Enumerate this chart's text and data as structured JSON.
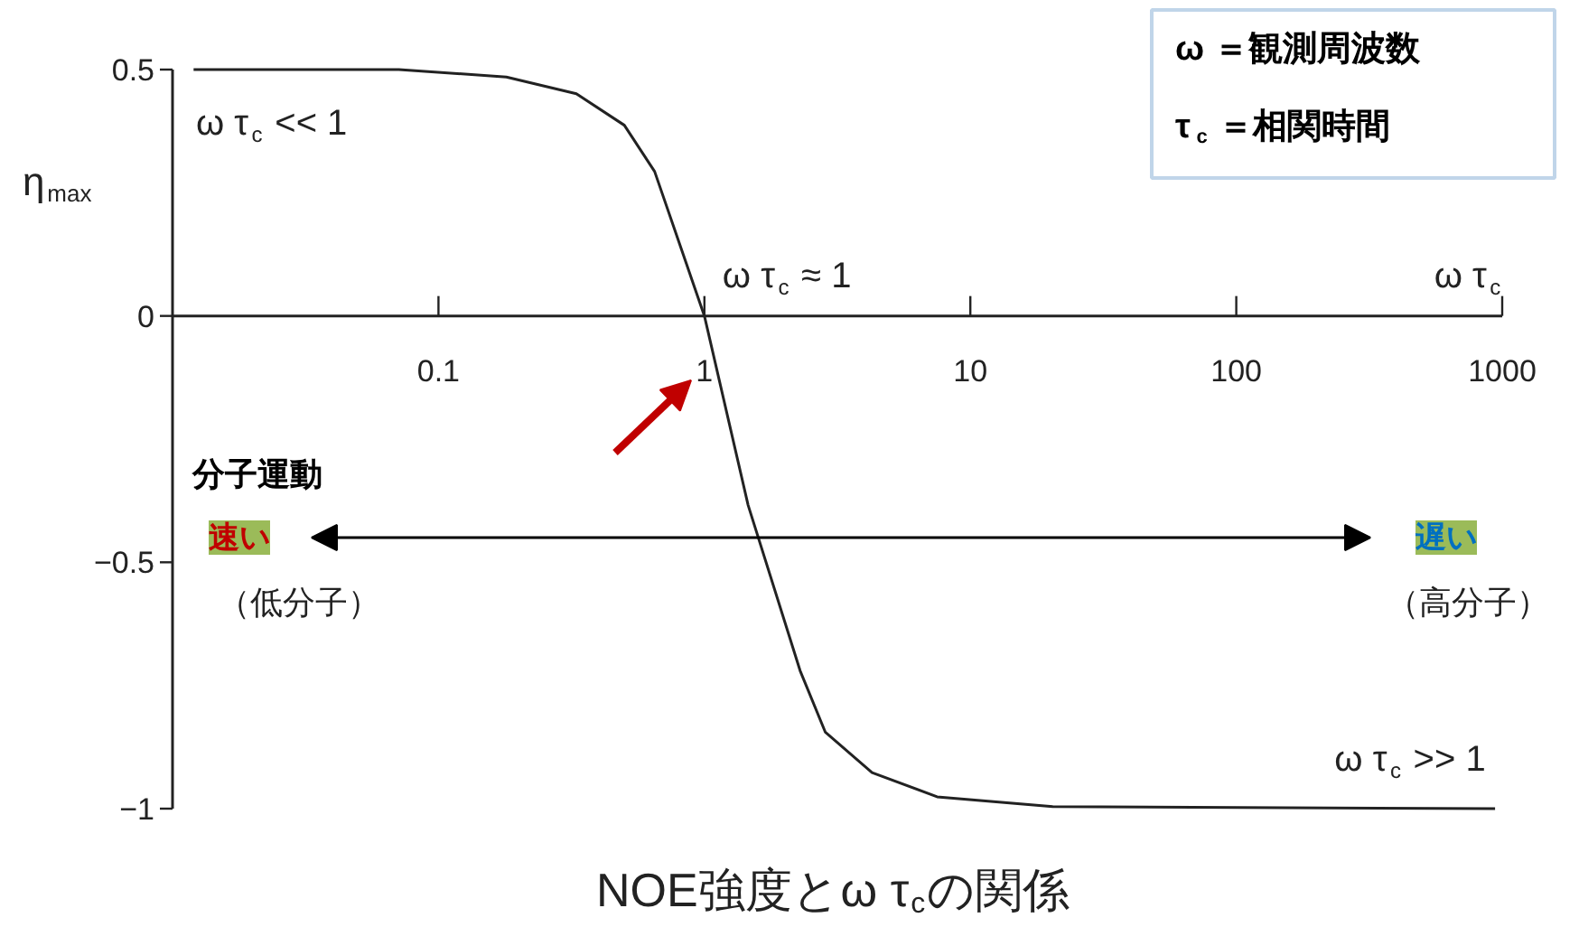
{
  "chart_data": {
    "type": "line",
    "title": "NOE強度とω τ$_{c}$の関係",
    "xlabel": "ω τ$_{c}$",
    "ylabel": "η$_{max}$",
    "log": "x",
    "x": [
      0.012,
      0.071,
      0.18,
      0.33,
      0.5,
      0.65,
      1,
      1.46,
      2.29,
      2.85,
      4.27,
      7.5,
      20.4,
      940
    ],
    "series": [
      {
        "color": "#222222",
        "values": [
          0.5,
          0.5,
          0.485,
          0.451,
          0.387,
          0.293,
          0,
          -0.384,
          -0.72,
          -0.845,
          -0.927,
          -0.976,
          -0.996,
          -1
        ]
      }
    ],
    "xlim": [
      0.01,
      1000
    ],
    "xticks": [
      0.1,
      1,
      10,
      100,
      1000
    ],
    "ylim": [
      -1,
      0.5
    ],
    "yticks": [
      0.5,
      0,
      {
        "value": -0.5,
        "label": "−0.5"
      },
      {
        "value": -1,
        "label": "−1"
      }
    ],
    "grid": false,
    "marker": "none",
    "line_style": "solid",
    "annotations": [
      "ω τ$_{c}$ << 1",
      {
        "text": "ω τ$_{c}$ ≈ 1",
        "x": 1,
        "y": 0
      },
      "ω τ$_{c}$ >> 1",
      "ω ＝観測周波数",
      "τ$_{c}$ ＝相関時間",
      "分子運動",
      "速い",
      "遅い",
      "（低分子）",
      "（高分子）"
    ]
  }
}
